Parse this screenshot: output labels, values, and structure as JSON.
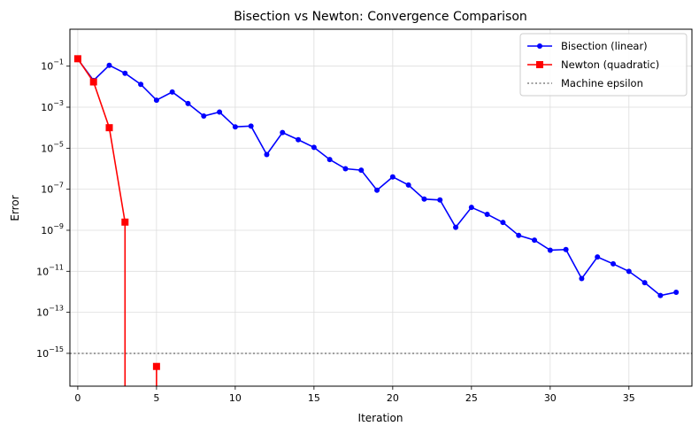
{
  "chart_data": {
    "type": "line",
    "title": "Bisection vs Newton: Convergence Comparison",
    "xlabel": "Iteration",
    "ylabel": "Error",
    "xlim": [
      -0.5,
      39.0
    ],
    "ylim_log10": [
      -16.6,
      0.8
    ],
    "yscale": "log",
    "grid": true,
    "legend_position": "top-right",
    "x_ticks": [
      0,
      5,
      10,
      15,
      20,
      25,
      30,
      35
    ],
    "y_ticks": [
      {
        "exp": -1,
        "label": "10−1"
      },
      {
        "exp": -3,
        "label": "10−3"
      },
      {
        "exp": -5,
        "label": "10−5"
      },
      {
        "exp": -7,
        "label": "10−7"
      },
      {
        "exp": -9,
        "label": "10−9"
      },
      {
        "exp": -11,
        "label": "10−11"
      },
      {
        "exp": -13,
        "label": "10−13"
      },
      {
        "exp": -15,
        "label": "10−15"
      }
    ],
    "series": [
      {
        "name": "Bisection (linear)",
        "color": "#0000ff",
        "marker": "circle",
        "x": [
          0,
          1,
          2,
          3,
          4,
          5,
          6,
          7,
          8,
          9,
          10,
          11,
          12,
          13,
          14,
          15,
          16,
          17,
          18,
          19,
          20,
          21,
          22,
          23,
          24,
          25,
          26,
          27,
          28,
          29,
          30,
          31,
          32,
          33,
          34,
          35,
          36,
          37,
          38
        ],
        "y": [
          0.22,
          0.02,
          0.11,
          0.045,
          0.013,
          0.0022,
          0.0055,
          0.0015,
          0.00037,
          0.00058,
          0.00011,
          0.00012,
          4.9e-06,
          5.8e-05,
          2.6e-05,
          1.1e-05,
          2.8e-06,
          1e-06,
          8.5e-07,
          9e-08,
          4e-07,
          1.6e-07,
          3.3e-08,
          3e-08,
          1.4e-09,
          1.3e-08,
          6e-09,
          2.4e-09,
          5.6e-10,
          3.3e-10,
          1.07e-10,
          1.15e-10,
          4.4e-12,
          5e-11,
          2.3e-11,
          9.9e-12,
          2.8e-12,
          6.6e-13,
          9.5e-13
        ]
      },
      {
        "name": "Newton (quadratic)",
        "color": "#ff0000",
        "marker": "square",
        "x": [
          0,
          1,
          2,
          3,
          5
        ],
        "y": [
          0.23,
          0.017,
          0.0001,
          2.5e-09,
          2.3e-16
        ],
        "zero_at": [
          4
        ]
      },
      {
        "name": "Machine epsilon",
        "color": "#808080",
        "style": "dotted",
        "hline": 1e-15
      }
    ]
  }
}
